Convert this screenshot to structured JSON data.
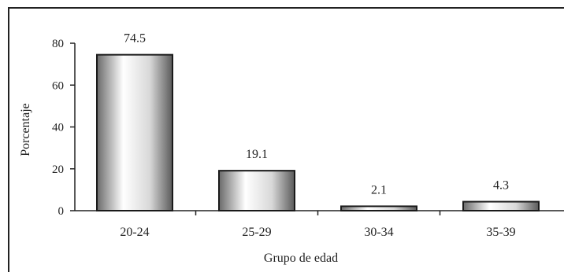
{
  "chart_data": {
    "type": "bar",
    "title": "",
    "xlabel": "Grupo de edad",
    "ylabel": "Porcentaje",
    "categories": [
      "20-24",
      "25-29",
      "30-34",
      "35-39"
    ],
    "values": [
      74.5,
      19.1,
      2.1,
      4.3
    ],
    "data_labels": [
      "74.5",
      "19.1",
      "2.1",
      "4.3"
    ],
    "yticks": [
      0,
      20,
      40,
      60,
      80
    ],
    "ytick_labels": [
      "0",
      "20",
      "40",
      "60",
      "80"
    ],
    "ylim": [
      0,
      80
    ],
    "grid": false,
    "legend": "none",
    "colors": {
      "bar_edge": "#1a1a1a",
      "bar_light": "#ffffff",
      "bar_dark": "#555555",
      "axis": "#222222"
    }
  }
}
